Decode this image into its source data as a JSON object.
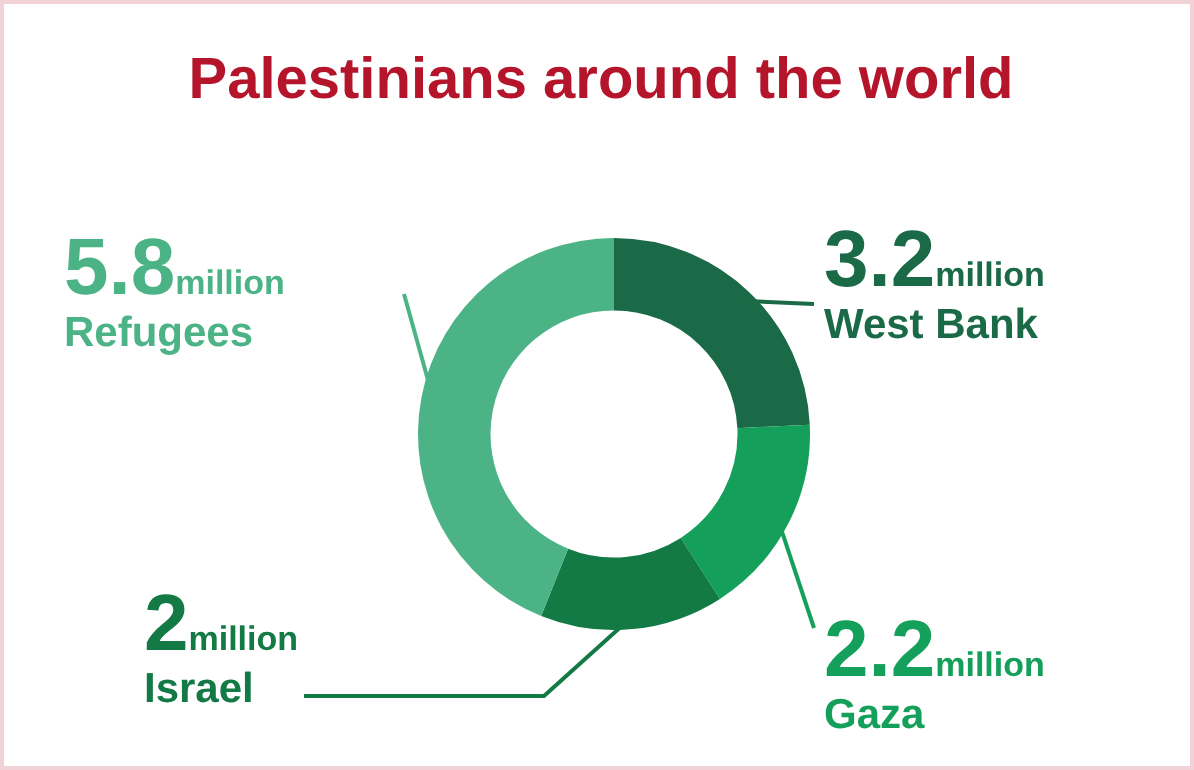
{
  "chart_data": {
    "type": "donut",
    "title": "Palestinians around the world",
    "categories": [
      "West Bank",
      "Gaza",
      "Israel",
      "Refugees"
    ],
    "values": [
      3.2,
      2.2,
      2,
      5.8
    ],
    "colors": [
      "#1b6a47",
      "#14a05a",
      "#137a45",
      "#4cb386"
    ],
    "value_labels": [
      "3.2million",
      "2.2million",
      "2million",
      "5.8million"
    ],
    "legend": false
  }
}
